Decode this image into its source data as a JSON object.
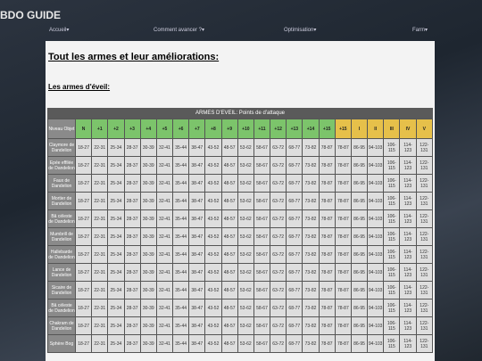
{
  "header": {
    "title": "BDO GUIDE"
  },
  "nav": [
    "Accueil▾",
    "Comment avancer ?▾",
    "Optimisation▾",
    "Farm▾"
  ],
  "content": {
    "heading": "Tout les armes et leur améliorations:",
    "subheading": "Les armes d'éveil:"
  },
  "table": {
    "caption": "ARMES D'EVEIL: Points de d'attaque",
    "columns": [
      "Niveau Objet",
      "N",
      "+1",
      "+2",
      "+3",
      "+4",
      "+5",
      "+6",
      "+7",
      "+8",
      "+9",
      "+10",
      "+11",
      "+12",
      "+13",
      "+14",
      "+15",
      "+15",
      "I",
      "II",
      "III",
      "IV",
      "V"
    ],
    "rows": [
      {
        "label": "Claymore de Dandelion",
        "cells": [
          "18-27",
          "22-31",
          "25-34",
          "28-37",
          "30-39",
          "32-41",
          "35-44",
          "38-47",
          "43-52",
          "48-57",
          "53-62",
          "58-67",
          "63-72",
          "68-77",
          "73-82",
          "78-87",
          "78-87",
          "86-95",
          "94-103",
          "106-115",
          "114-123",
          "122-131"
        ]
      },
      {
        "label": "Epée effilée de Dandelion",
        "cells": [
          "18-27",
          "22-31",
          "25-34",
          "28-37",
          "30-39",
          "32-41",
          "35-44",
          "38-47",
          "43-52",
          "48-57",
          "53-62",
          "58-67",
          "63-72",
          "68-77",
          "73-82",
          "78-87",
          "78-87",
          "86-95",
          "94-103",
          "106-115",
          "114-123",
          "122-131"
        ]
      },
      {
        "label": "Faux de Dandelion",
        "cells": [
          "18-27",
          "22-31",
          "25-34",
          "28-37",
          "30-39",
          "32-41",
          "35-44",
          "38-47",
          "43-52",
          "48-57",
          "53-62",
          "58-67",
          "63-72",
          "68-77",
          "73-82",
          "78-87",
          "78-87",
          "86-95",
          "94-103",
          "106-115",
          "114-123",
          "122-131"
        ]
      },
      {
        "label": "Mortier de Dandelion",
        "cells": [
          "18-27",
          "22-31",
          "25-34",
          "28-37",
          "30-39",
          "32-41",
          "35-44",
          "38-47",
          "43-52",
          "48-57",
          "53-62",
          "58-67",
          "63-72",
          "68-77",
          "73-82",
          "78-87",
          "78-87",
          "86-95",
          "94-103",
          "106-115",
          "114-123",
          "122-131"
        ]
      },
      {
        "label": "Bâ céleste de Dandelion",
        "cells": [
          "18-27",
          "22-31",
          "25-34",
          "28-37",
          "30-39",
          "32-41",
          "35-44",
          "38-47",
          "43-52",
          "48-57",
          "53-62",
          "58-67",
          "63-72",
          "68-77",
          "73-82",
          "78-87",
          "78-87",
          "86-95",
          "94-103",
          "106-115",
          "114-123",
          "122-131"
        ]
      },
      {
        "label": "Mumbrill de Dandelion",
        "cells": [
          "18-27",
          "22-31",
          "25-34",
          "28-37",
          "30-39",
          "32-41",
          "35-44",
          "38-47",
          "43-52",
          "48-57",
          "53-62",
          "58-67",
          "63-72",
          "68-77",
          "73-82",
          "78-87",
          "78-87",
          "86-95",
          "94-103",
          "106-115",
          "114-123",
          "122-131"
        ]
      },
      {
        "label": "Hallebarde de Dandelion",
        "cells": [
          "18-27",
          "22-31",
          "25-34",
          "28-37",
          "30-39",
          "32-41",
          "35-44",
          "38-47",
          "43-52",
          "48-57",
          "53-62",
          "58-67",
          "63-72",
          "68-77",
          "73-82",
          "78-87",
          "78-87",
          "86-95",
          "94-103",
          "106-115",
          "114-123",
          "122-131"
        ]
      },
      {
        "label": "Lance de Dandelion",
        "cells": [
          "18-27",
          "22-31",
          "25-34",
          "28-37",
          "30-39",
          "32-41",
          "35-44",
          "38-47",
          "43-52",
          "48-57",
          "53-62",
          "58-67",
          "63-72",
          "68-77",
          "73-82",
          "78-87",
          "78-87",
          "86-95",
          "94-103",
          "106-115",
          "114-123",
          "122-131"
        ]
      },
      {
        "label": "Sicaire de Dandelion",
        "cells": [
          "18-27",
          "22-31",
          "25-34",
          "28-37",
          "30-39",
          "32-41",
          "35-44",
          "38-47",
          "43-52",
          "48-57",
          "53-62",
          "58-67",
          "63-72",
          "68-77",
          "73-82",
          "78-87",
          "78-87",
          "86-95",
          "94-103",
          "106-115",
          "114-123",
          "122-131"
        ]
      },
      {
        "label": "Bâ céleste de Dandelion",
        "cells": [
          "18-27",
          "22-31",
          "25-34",
          "28-37",
          "30-39",
          "32-41",
          "35-44",
          "38-47",
          "43-52",
          "48-57",
          "53-62",
          "58-67",
          "63-72",
          "68-77",
          "73-82",
          "78-87",
          "78-87",
          "86-95",
          "94-103",
          "106-115",
          "114-123",
          "122-131"
        ]
      },
      {
        "label": "Chakram de Dandelion",
        "cells": [
          "18-27",
          "22-31",
          "25-34",
          "28-37",
          "30-39",
          "32-41",
          "35-44",
          "38-47",
          "43-52",
          "48-57",
          "53-62",
          "58-67",
          "63-72",
          "68-77",
          "73-82",
          "78-87",
          "78-87",
          "86-95",
          "94-103",
          "106-115",
          "114-123",
          "122-131"
        ]
      },
      {
        "label": "Sphère Bog",
        "cells": [
          "18-27",
          "22-31",
          "25-34",
          "28-37",
          "30-39",
          "32-41",
          "35-44",
          "38-47",
          "43-52",
          "48-57",
          "53-62",
          "58-67",
          "63-72",
          "68-77",
          "73-82",
          "78-87",
          "78-87",
          "86-95",
          "94-103",
          "106-115",
          "114-123",
          "122-131"
        ]
      }
    ]
  }
}
